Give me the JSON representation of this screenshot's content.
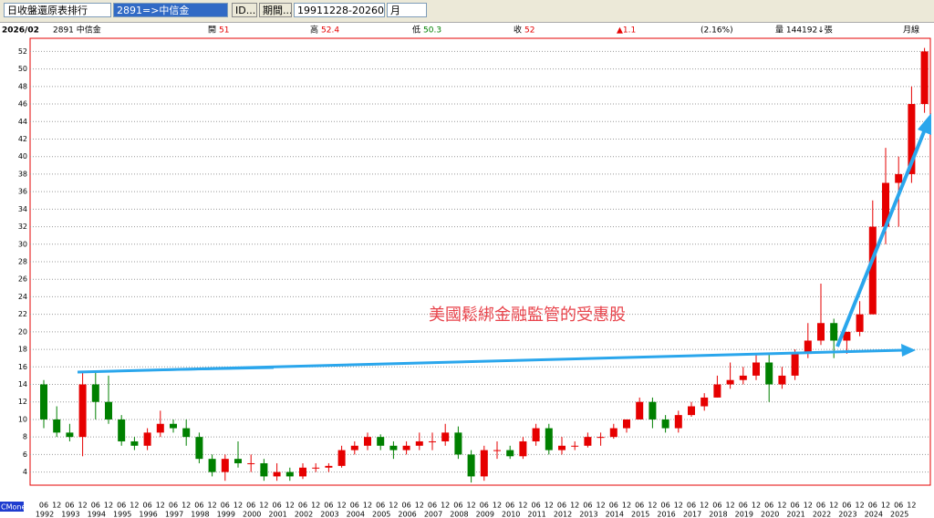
{
  "toolbar": {
    "report": "日收盤還原表排行",
    "stock": "2891=>中信金",
    "id_button": "ID...",
    "period_button": "期間...",
    "range": "19911228-20260209",
    "freq": "月"
  },
  "chart_data": {
    "type": "candlestick",
    "header": {
      "date": "2026/02",
      "name": "2891 中信金",
      "open_label": "開",
      "open": 51,
      "high_label": "高",
      "high": 52.4,
      "low_label": "低",
      "low": 50.3,
      "close_label": "收",
      "close": 52,
      "change": "▲1.1",
      "change_pct": "(2.16%)",
      "volume": "量 144192↓張",
      "freq": "月線"
    },
    "annotation": "美國鬆綁金融監管的受惠股",
    "source": "CMoney",
    "categories": [
      "06",
      "12",
      "06",
      "12",
      "06",
      "12",
      "06",
      "12",
      "06",
      "12",
      "06",
      "12",
      "06",
      "12",
      "06",
      "12",
      "06",
      "12",
      "06",
      "12",
      "06",
      "12",
      "06",
      "12",
      "06",
      "12",
      "06",
      "12",
      "06",
      "12",
      "06",
      "12",
      "06",
      "12",
      "06",
      "12",
      "06",
      "12",
      "06",
      "12",
      "06",
      "12",
      "06",
      "12",
      "06",
      "12",
      "06",
      "12",
      "06",
      "12",
      "06",
      "12",
      "06",
      "12",
      "06",
      "12",
      "06",
      "12",
      "06",
      "12",
      "06",
      "12",
      "06",
      "12",
      "06",
      "12",
      "06",
      "12",
      null
    ],
    "years": [
      1992,
      1993,
      1994,
      1995,
      1996,
      1997,
      1998,
      1999,
      2000,
      2001,
      2002,
      2003,
      2004,
      2005,
      2006,
      2007,
      2008,
      2009,
      2010,
      2011,
      2012,
      2013,
      2014,
      2015,
      2016,
      2017,
      2018,
      2019,
      2020,
      2021,
      2022,
      2023,
      2024,
      2025
    ],
    "open": [
      14,
      10,
      8.5,
      8,
      14,
      12,
      10,
      7.5,
      7,
      8.5,
      9.5,
      9,
      8,
      5.5,
      4,
      5.5,
      5,
      5,
      3.5,
      4,
      3.5,
      4.5,
      4.5,
      4.7,
      6.5,
      7,
      8,
      7,
      6.5,
      7,
      7.5,
      7.5,
      8.5,
      6,
      3.5,
      6.5,
      6.5,
      5.8,
      7.5,
      9,
      6.5,
      7,
      7,
      8,
      8,
      9,
      10,
      12,
      10,
      9,
      10.5,
      11.5,
      12.5,
      14,
      14.5,
      15,
      16.5,
      14,
      15,
      17.5,
      19,
      21,
      19,
      20,
      22,
      32,
      37,
      38,
      46
    ],
    "high": [
      14.5,
      11.5,
      9.5,
      15.5,
      15.5,
      15,
      10.5,
      8,
      9,
      11,
      10,
      10,
      8.5,
      6,
      6,
      7.5,
      6,
      5.5,
      5,
      4.5,
      5,
      5,
      5,
      7,
      7.5,
      8.5,
      8.3,
      7.5,
      7.5,
      8.5,
      8.5,
      9.5,
      9.2,
      6.5,
      7,
      7.5,
      7,
      8,
      9.5,
      9.5,
      8,
      7.5,
      8.5,
      8.5,
      9.5,
      10,
      12.5,
      12.5,
      10.5,
      11,
      12,
      13,
      15,
      16.5,
      16,
      17.5,
      17.5,
      16,
      18,
      21,
      25.5,
      21.5,
      20,
      23.5,
      35,
      41,
      40,
      48,
      52.4
    ],
    "low": [
      9,
      8,
      7.5,
      5.8,
      10,
      9.5,
      7,
      6.5,
      6.5,
      8,
      8.5,
      7,
      5,
      3.5,
      3,
      4.5,
      4,
      3,
      3,
      3,
      3.2,
      4,
      4,
      4.5,
      6,
      6.5,
      6.5,
      5.5,
      6,
      6.5,
      6.5,
      7,
      5.5,
      2.8,
      3,
      5.5,
      5.5,
      5.5,
      7,
      6,
      6,
      6.5,
      6.8,
      7,
      7.8,
      8.5,
      10,
      9,
      8.5,
      8.5,
      10.3,
      11,
      12.5,
      13.5,
      14,
      14.5,
      12,
      13.5,
      14.5,
      17,
      18.5,
      17,
      17.5,
      19.5,
      22,
      30,
      32,
      37,
      45
    ],
    "close": [
      10,
      8.5,
      8,
      14,
      12,
      10,
      7.5,
      7,
      8.5,
      9.5,
      9,
      8,
      5.5,
      4,
      5.5,
      5,
      5,
      3.5,
      4,
      3.5,
      4.5,
      4.5,
      4.7,
      6.5,
      7,
      8,
      7,
      6.5,
      7,
      7.5,
      7.5,
      8.5,
      6,
      3.5,
      6.5,
      6.5,
      5.8,
      7.5,
      9,
      6.5,
      7,
      7,
      8,
      8,
      9,
      10,
      12,
      10,
      9,
      10.5,
      11.5,
      12.5,
      14,
      14.5,
      15,
      16.5,
      14,
      15,
      17.5,
      19,
      21,
      19,
      20,
      22,
      32,
      37,
      38,
      46,
      52
    ],
    "up_color": "#e60000",
    "down_color": "#008000",
    "ylim": [
      2.5,
      53.5
    ],
    "yticks": [
      4,
      6,
      8,
      10,
      12,
      14,
      16,
      18,
      20,
      22,
      24,
      26,
      28,
      30,
      32,
      34,
      36,
      38,
      40,
      42,
      44,
      46,
      48,
      50,
      52
    ],
    "grid": true
  }
}
